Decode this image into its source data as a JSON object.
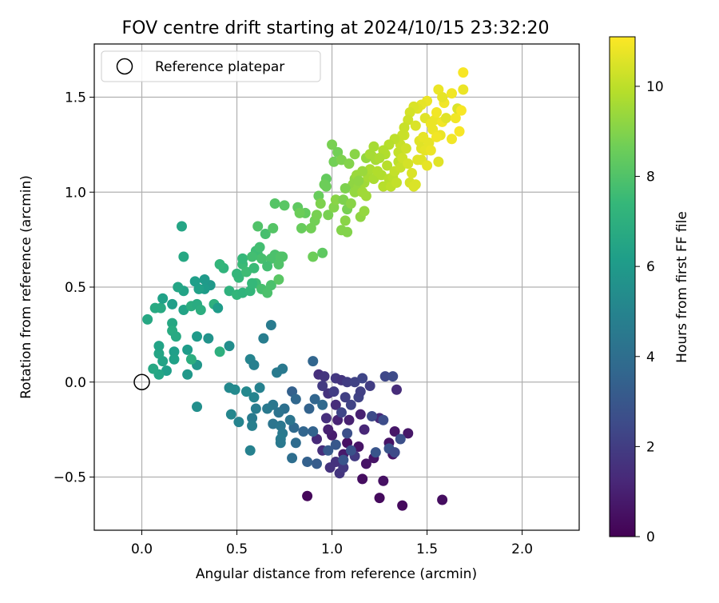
{
  "chart_data": {
    "type": "scatter",
    "title": "FOV centre drift starting at 2024/10/15 23:32:20",
    "xlabel": "Angular distance from reference (arcmin)",
    "ylabel": "Rotation from reference (arcmin)",
    "xlim": [
      -0.25,
      2.3
    ],
    "ylim": [
      -0.78,
      1.78
    ],
    "xticks": [
      0.0,
      0.5,
      1.0,
      1.5,
      2.0
    ],
    "xtick_labels": [
      "0.0",
      "0.5",
      "1.0",
      "1.5",
      "2.0"
    ],
    "yticks": [
      -0.5,
      0.0,
      0.5,
      1.0,
      1.5
    ],
    "ytick_labels": [
      "−0.5",
      "0.0",
      "0.5",
      "1.0",
      "1.5"
    ],
    "grid": true,
    "legend": {
      "position": "top-left",
      "entries": [
        "Reference platepar"
      ]
    },
    "reference_point": {
      "label": "Reference platepar",
      "x": 0.0,
      "y": 0.0
    },
    "colorbar": {
      "label": "Hours from first FF file",
      "range": [
        0,
        11.1
      ],
      "ticks": [
        0,
        2,
        4,
        6,
        8,
        10
      ],
      "tick_labels": [
        "0",
        "2",
        "4",
        "6",
        "8",
        "10"
      ],
      "colormap": "viridis"
    },
    "points": [
      [
        0.87,
        -0.6,
        0.2
      ],
      [
        1.37,
        -0.65,
        0.3
      ],
      [
        1.58,
        -0.62,
        0.4
      ],
      [
        1.25,
        -0.61,
        0.3
      ],
      [
        1.16,
        -0.51,
        0.4
      ],
      [
        1.27,
        -0.52,
        0.5
      ],
      [
        1.08,
        -0.32,
        0.5
      ],
      [
        1.14,
        -0.34,
        0.6
      ],
      [
        1.22,
        -0.4,
        0.6
      ],
      [
        1.32,
        -0.38,
        0.6
      ],
      [
        1.4,
        -0.27,
        0.7
      ],
      [
        1.33,
        -0.26,
        0.7
      ],
      [
        1.3,
        -0.32,
        0.6
      ],
      [
        1.18,
        -0.43,
        0.6
      ],
      [
        1.06,
        -0.38,
        0.8
      ],
      [
        1.0,
        -0.28,
        0.9
      ],
      [
        0.98,
        -0.25,
        1.0
      ],
      [
        1.03,
        -0.2,
        1.1
      ],
      [
        1.09,
        -0.2,
        1.0
      ],
      [
        1.15,
        -0.17,
        1.0
      ],
      [
        1.17,
        -0.25,
        1.2
      ],
      [
        1.25,
        -0.19,
        1.3
      ],
      [
        1.34,
        -0.04,
        1.4
      ],
      [
        0.92,
        -0.3,
        1.3
      ],
      [
        0.95,
        -0.36,
        1.5
      ],
      [
        1.02,
        -0.42,
        1.6
      ],
      [
        1.04,
        -0.48,
        1.7
      ],
      [
        0.99,
        -0.45,
        1.6
      ],
      [
        1.06,
        -0.45,
        1.8
      ],
      [
        1.12,
        -0.39,
        1.9
      ],
      [
        0.97,
        -0.19,
        1.5
      ],
      [
        1.02,
        -0.12,
        1.4
      ],
      [
        0.98,
        -0.06,
        1.6
      ],
      [
        0.93,
        0.04,
        1.5
      ],
      [
        0.96,
        0.03,
        1.7
      ],
      [
        1.02,
        0.02,
        1.8
      ],
      [
        1.05,
        0.01,
        1.7
      ],
      [
        0.95,
        -0.02,
        1.9
      ],
      [
        1.01,
        -0.05,
        2.0
      ],
      [
        1.07,
        -0.08,
        2.1
      ],
      [
        1.1,
        -0.12,
        2.2
      ],
      [
        1.14,
        -0.08,
        2.2
      ],
      [
        1.05,
        -0.16,
        2.3
      ],
      [
        1.28,
        0.03,
        2.4
      ],
      [
        1.32,
        0.03,
        2.5
      ],
      [
        1.27,
        -0.2,
        2.6
      ],
      [
        1.21,
        -0.18,
        2.5
      ],
      [
        1.36,
        -0.3,
        2.7
      ],
      [
        1.3,
        -0.35,
        2.8
      ],
      [
        1.23,
        -0.37,
        2.9
      ],
      [
        1.33,
        -0.37,
        2.5
      ],
      [
        1.08,
        -0.27,
        2.7
      ],
      [
        1.1,
        -0.36,
        2.8
      ],
      [
        1.06,
        -0.41,
        2.9
      ],
      [
        1.02,
        -0.33,
        3.0
      ],
      [
        0.98,
        -0.36,
        3.1
      ],
      [
        0.92,
        -0.43,
        3.2
      ],
      [
        0.87,
        -0.42,
        3.4
      ],
      [
        0.9,
        -0.26,
        3.5
      ],
      [
        0.85,
        -0.26,
        3.6
      ],
      [
        0.88,
        -0.14,
        3.5
      ],
      [
        0.9,
        0.11,
        3.6
      ],
      [
        0.79,
        -0.05,
        3.4
      ],
      [
        0.81,
        -0.09,
        3.7
      ],
      [
        0.91,
        -0.09,
        3.6
      ],
      [
        0.95,
        -0.12,
        3.8
      ],
      [
        0.8,
        -0.24,
        3.8
      ],
      [
        0.81,
        -0.32,
        3.9
      ],
      [
        0.79,
        -0.4,
        4.0
      ],
      [
        1.2,
        -0.02,
        2.0
      ],
      [
        1.15,
        -0.05,
        2.1
      ],
      [
        1.08,
        0.0,
        2.0
      ],
      [
        1.12,
        0.0,
        2.2
      ],
      [
        1.16,
        0.02,
        2.3
      ],
      [
        0.75,
        -0.14,
        4.1
      ],
      [
        0.72,
        -0.16,
        4.2
      ],
      [
        0.69,
        -0.22,
        4.3
      ],
      [
        0.73,
        -0.23,
        4.4
      ],
      [
        0.78,
        -0.2,
        4.3
      ],
      [
        0.74,
        -0.27,
        4.5
      ],
      [
        0.73,
        -0.3,
        4.6
      ],
      [
        0.73,
        -0.32,
        4.5
      ],
      [
        0.69,
        -0.12,
        4.4
      ],
      [
        0.66,
        -0.14,
        4.5
      ],
      [
        0.6,
        -0.14,
        4.7
      ],
      [
        0.58,
        -0.19,
        4.6
      ],
      [
        0.58,
        -0.23,
        4.8
      ],
      [
        0.57,
        -0.36,
        4.9
      ],
      [
        0.51,
        -0.21,
        5.0
      ],
      [
        0.47,
        -0.17,
        5.1
      ],
      [
        0.46,
        -0.03,
        5.2
      ],
      [
        0.49,
        -0.04,
        5.3
      ],
      [
        0.55,
        -0.05,
        5.2
      ],
      [
        0.59,
        -0.08,
        5.0
      ],
      [
        0.62,
        -0.03,
        4.9
      ],
      [
        0.57,
        0.12,
        5.0
      ],
      [
        0.59,
        0.09,
        4.8
      ],
      [
        0.64,
        0.23,
        4.7
      ],
      [
        0.71,
        0.05,
        4.6
      ],
      [
        0.74,
        0.07,
        4.5
      ],
      [
        0.68,
        0.3,
        4.6
      ],
      [
        0.46,
        0.19,
        5.4
      ],
      [
        0.35,
        0.23,
        5.7
      ],
      [
        0.29,
        0.09,
        5.8
      ],
      [
        0.24,
        0.04,
        5.9
      ],
      [
        0.29,
        0.24,
        6.0
      ],
      [
        0.24,
        0.17,
        6.1
      ],
      [
        0.17,
        0.16,
        6.2
      ],
      [
        0.17,
        0.12,
        6.3
      ],
      [
        0.13,
        0.06,
        6.2
      ],
      [
        0.11,
        0.11,
        6.4
      ],
      [
        0.09,
        0.04,
        6.5
      ],
      [
        0.06,
        0.07,
        6.6
      ],
      [
        0.09,
        0.15,
        6.5
      ],
      [
        0.09,
        0.19,
        6.4
      ],
      [
        0.03,
        0.33,
        6.6
      ],
      [
        0.07,
        0.39,
        6.7
      ],
      [
        0.1,
        0.39,
        6.7
      ],
      [
        0.11,
        0.44,
        6.3
      ],
      [
        0.16,
        0.41,
        6.2
      ],
      [
        0.22,
        0.38,
        6.4
      ],
      [
        0.26,
        0.4,
        6.9
      ],
      [
        0.29,
        0.41,
        6.8
      ],
      [
        0.31,
        0.38,
        6.9
      ],
      [
        0.38,
        0.41,
        7.0
      ],
      [
        0.4,
        0.39,
        6.1
      ],
      [
        0.36,
        0.51,
        5.9
      ],
      [
        0.33,
        0.54,
        6.0
      ],
      [
        0.33,
        0.49,
        6.1
      ],
      [
        0.3,
        0.49,
        6.3
      ],
      [
        0.28,
        0.53,
        6.2
      ],
      [
        0.22,
        0.48,
        6.4
      ],
      [
        0.19,
        0.5,
        6.5
      ],
      [
        0.16,
        0.31,
        6.6
      ],
      [
        0.16,
        0.27,
        6.8
      ],
      [
        0.18,
        0.24,
        6.7
      ],
      [
        0.22,
        0.66,
        6.6
      ],
      [
        0.21,
        0.82,
        6.5
      ],
      [
        0.26,
        0.12,
        6.9
      ],
      [
        0.29,
        -0.13,
        5.5
      ],
      [
        0.41,
        0.16,
        7.0
      ],
      [
        0.43,
        0.6,
        7.2
      ],
      [
        0.41,
        0.62,
        7.3
      ],
      [
        0.46,
        0.48,
        7.1
      ],
      [
        0.5,
        0.46,
        7.3
      ],
      [
        0.53,
        0.47,
        7.2
      ],
      [
        0.51,
        0.55,
        7.4
      ],
      [
        0.5,
        0.57,
        7.3
      ],
      [
        0.53,
        0.62,
        7.5
      ],
      [
        0.53,
        0.65,
        7.4
      ],
      [
        0.55,
        0.58,
        7.6
      ],
      [
        0.59,
        0.6,
        7.5
      ],
      [
        0.6,
        0.52,
        7.6
      ],
      [
        0.61,
        0.67,
        7.7
      ],
      [
        0.6,
        0.69,
        7.6
      ],
      [
        0.63,
        0.65,
        7.8
      ],
      [
        0.62,
        0.71,
        7.7
      ],
      [
        0.65,
        0.78,
        7.8
      ],
      [
        0.68,
        0.65,
        7.9
      ],
      [
        0.7,
        0.67,
        7.9
      ],
      [
        0.66,
        0.61,
        7.7
      ],
      [
        0.63,
        0.49,
        7.8
      ],
      [
        0.66,
        0.47,
        7.9
      ],
      [
        0.68,
        0.51,
        7.9
      ],
      [
        0.72,
        0.62,
        8.0
      ],
      [
        0.74,
        0.66,
        8.0
      ],
      [
        0.73,
        0.66,
        8.0
      ],
      [
        0.61,
        0.82,
        8.0
      ],
      [
        0.69,
        0.81,
        8.1
      ],
      [
        0.7,
        0.94,
        8.1
      ],
      [
        0.75,
        0.93,
        8.2
      ],
      [
        0.72,
        0.54,
        8.2
      ],
      [
        0.57,
        0.48,
        7.3
      ],
      [
        0.58,
        0.66,
        7.7
      ],
      [
        0.58,
        0.52,
        7.4
      ],
      [
        0.82,
        0.92,
        8.3
      ],
      [
        0.84,
        0.81,
        8.5
      ],
      [
        0.86,
        0.89,
        8.4
      ],
      [
        0.83,
        0.89,
        8.6
      ],
      [
        0.9,
        0.66,
        8.6
      ],
      [
        0.89,
        0.81,
        8.7
      ],
      [
        0.91,
        0.85,
        8.7
      ],
      [
        0.92,
        0.88,
        8.8
      ],
      [
        0.93,
        0.98,
        8.5
      ],
      [
        0.94,
        0.94,
        8.9
      ],
      [
        0.97,
        1.03,
        8.6
      ],
      [
        0.97,
        1.07,
        8.4
      ],
      [
        0.95,
        0.68,
        8.3
      ],
      [
        0.98,
        0.88,
        8.8
      ],
      [
        1.01,
        0.92,
        9.0
      ],
      [
        1.02,
        0.96,
        9.1
      ],
      [
        1.05,
        0.8,
        9.0
      ],
      [
        1.06,
        0.96,
        8.9
      ],
      [
        1.07,
        0.85,
        9.1
      ],
      [
        1.08,
        0.91,
        8.8
      ],
      [
        1.08,
        0.79,
        9.0
      ],
      [
        1.11,
        1.04,
        9.2
      ],
      [
        1.12,
        1.0,
        9.3
      ],
      [
        1.12,
        1.07,
        9.2
      ],
      [
        1.13,
        1.09,
        9.4
      ],
      [
        1.14,
        1.03,
        9.3
      ],
      [
        1.15,
        0.87,
        9.2
      ],
      [
        1.17,
        0.9,
        9.3
      ],
      [
        1.16,
        1.0,
        9.5
      ],
      [
        1.17,
        1.05,
        9.5
      ],
      [
        1.18,
        0.98,
        9.5
      ],
      [
        1.19,
        1.08,
        9.6
      ],
      [
        1.2,
        1.12,
        9.7
      ],
      [
        1.22,
        1.07,
        9.7
      ],
      [
        1.21,
        1.19,
        9.7
      ],
      [
        1.01,
        1.16,
        8.7
      ],
      [
        1.0,
        1.25,
        8.8
      ],
      [
        1.03,
        1.21,
        8.7
      ],
      [
        1.05,
        1.17,
        8.9
      ],
      [
        1.07,
        1.02,
        8.9
      ],
      [
        1.09,
        1.15,
        9.0
      ],
      [
        1.12,
        1.2,
        9.1
      ],
      [
        1.14,
        1.06,
        9.2
      ],
      [
        1.16,
        1.11,
        9.4
      ],
      [
        1.18,
        1.18,
        9.3
      ],
      [
        1.2,
        1.2,
        9.6
      ],
      [
        1.22,
        1.24,
        9.6
      ],
      [
        1.23,
        1.17,
        9.6
      ],
      [
        1.24,
        1.11,
        9.8
      ],
      [
        1.26,
        1.09,
        9.8
      ],
      [
        1.27,
        1.03,
        9.9
      ],
      [
        1.28,
        1.2,
        9.8
      ],
      [
        1.29,
        1.14,
        9.9
      ],
      [
        1.3,
        1.07,
        9.9
      ],
      [
        1.31,
        1.03,
        10.0
      ],
      [
        1.32,
        1.08,
        10.0
      ],
      [
        1.33,
        1.11,
        10.1
      ],
      [
        1.34,
        1.05,
        10.1
      ],
      [
        1.35,
        1.16,
        10.0
      ],
      [
        1.35,
        1.21,
        10.1
      ],
      [
        1.36,
        1.13,
        10.2
      ],
      [
        1.36,
        1.25,
        10.2
      ],
      [
        1.37,
        1.18,
        10.3
      ],
      [
        1.38,
        1.3,
        10.3
      ],
      [
        1.39,
        1.23,
        10.3
      ],
      [
        1.4,
        1.15,
        10.4
      ],
      [
        1.41,
        1.05,
        10.4
      ],
      [
        1.42,
        1.1,
        10.5
      ],
      [
        1.43,
        1.03,
        10.5
      ],
      [
        1.44,
        1.04,
        10.5
      ],
      [
        1.45,
        1.17,
        10.6
      ],
      [
        1.46,
        1.27,
        10.6
      ],
      [
        1.47,
        1.17,
        10.6
      ],
      [
        1.47,
        1.23,
        10.6
      ],
      [
        1.48,
        1.29,
        10.7
      ],
      [
        1.49,
        1.22,
        10.7
      ],
      [
        1.5,
        1.14,
        10.7
      ],
      [
        1.51,
        1.26,
        10.7
      ],
      [
        1.52,
        1.22,
        10.8
      ],
      [
        1.53,
        1.33,
        10.8
      ],
      [
        1.54,
        1.38,
        10.8
      ],
      [
        1.55,
        1.42,
        10.9
      ],
      [
        1.56,
        1.16,
        10.6
      ],
      [
        1.57,
        1.3,
        10.8
      ],
      [
        1.58,
        1.37,
        10.9
      ],
      [
        1.59,
        1.47,
        10.9
      ],
      [
        1.6,
        1.39,
        10.6
      ],
      [
        1.63,
        1.28,
        10.9
      ],
      [
        1.65,
        1.39,
        10.9
      ],
      [
        1.66,
        1.44,
        10.5
      ],
      [
        1.67,
        1.32,
        11.0
      ],
      [
        1.68,
        1.43,
        11.0
      ],
      [
        1.69,
        1.54,
        10.8
      ],
      [
        1.69,
        1.63,
        11.0
      ],
      [
        1.56,
        1.54,
        10.8
      ],
      [
        1.58,
        1.5,
        10.7
      ],
      [
        1.63,
        1.52,
        10.9
      ],
      [
        1.5,
        1.48,
        10.8
      ],
      [
        1.47,
        1.46,
        10.7
      ],
      [
        1.45,
        1.44,
        10.6
      ],
      [
        1.43,
        1.45,
        10.5
      ],
      [
        1.41,
        1.42,
        10.4
      ],
      [
        1.4,
        1.38,
        10.3
      ],
      [
        1.38,
        1.34,
        10.2
      ],
      [
        1.37,
        1.3,
        10.2
      ],
      [
        1.33,
        1.28,
        10.0
      ],
      [
        1.3,
        1.25,
        9.9
      ],
      [
        1.27,
        1.22,
        9.8
      ],
      [
        1.25,
        1.18,
        9.7
      ],
      [
        1.44,
        1.35,
        10.5
      ],
      [
        1.49,
        1.39,
        10.6
      ],
      [
        1.52,
        1.36,
        10.8
      ],
      [
        1.55,
        1.29,
        10.9
      ],
      [
        1.1,
        0.94,
        9.1
      ],
      [
        0.96,
        1.04,
        8.6
      ]
    ]
  }
}
